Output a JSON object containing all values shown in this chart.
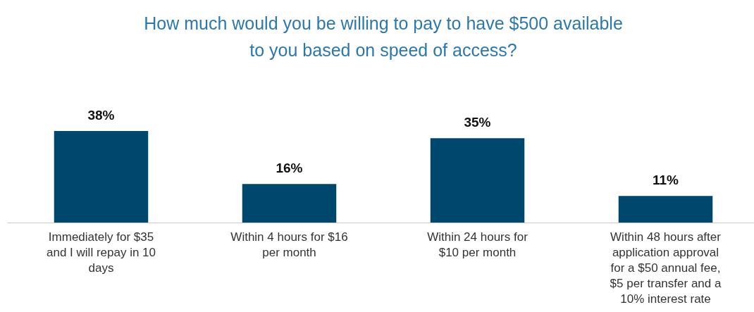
{
  "chart_data": {
    "type": "bar",
    "title": "How much would you be willing to pay to have $500 available to you based on speed of access?",
    "categories": [
      "Immediately for $35 and I will repay in 10 days",
      "Within 4 hours for $16 per month",
      "Within 24 hours for $10 per month",
      "Within 48 hours after application approval for a $50 annual fee, $5 per transfer and a 10% interest rate"
    ],
    "values": [
      38,
      16,
      35,
      11
    ],
    "value_labels": [
      "38%",
      "16%",
      "35%",
      "11%"
    ],
    "color": "#00476e"
  }
}
